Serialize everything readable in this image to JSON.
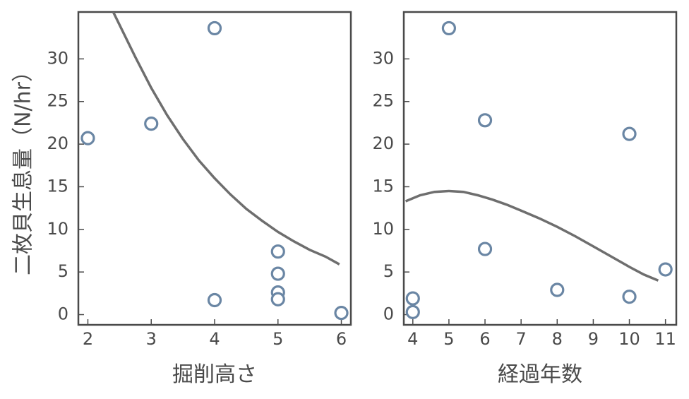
{
  "chart_data": {
    "ylabel": "二枚貝生息量（N/hr）",
    "panels": [
      {
        "type": "scatter",
        "xlabel": "掘削高さ",
        "xlim": [
          1.85,
          6.15
        ],
        "ylim": [
          -1.2,
          35.5
        ],
        "xticks": [
          2,
          3,
          4,
          5,
          6
        ],
        "yticks": [
          0,
          5,
          10,
          15,
          20,
          25,
          30
        ],
        "points": [
          {
            "x": 2,
            "y": 20.7
          },
          {
            "x": 3,
            "y": 22.4
          },
          {
            "x": 4,
            "y": 33.6
          },
          {
            "x": 4,
            "y": 1.7
          },
          {
            "x": 5,
            "y": 7.4
          },
          {
            "x": 5,
            "y": 4.8
          },
          {
            "x": 5,
            "y": 2.6
          },
          {
            "x": 5,
            "y": 1.8
          },
          {
            "x": 6,
            "y": 0.2
          }
        ],
        "fit_curve": {
          "type": "line",
          "x": [
            2.4,
            2.75,
            3.0,
            3.25,
            3.5,
            3.75,
            4.0,
            4.25,
            4.5,
            4.75,
            5.0,
            5.25,
            5.5,
            5.75,
            5.97
          ],
          "y": [
            35.5,
            30.2,
            26.6,
            23.4,
            20.6,
            18.1,
            16.0,
            14.1,
            12.4,
            11.0,
            9.7,
            8.6,
            7.6,
            6.8,
            5.9
          ]
        }
      },
      {
        "type": "scatter",
        "xlabel": "経過年数",
        "xlim": [
          3.75,
          11.3
        ],
        "ylim": [
          -1.2,
          35.5
        ],
        "xticks": [
          4,
          5,
          6,
          7,
          8,
          9,
          10,
          11
        ],
        "yticks": [
          0,
          5,
          10,
          15,
          20,
          25,
          30
        ],
        "points": [
          {
            "x": 4,
            "y": 1.9
          },
          {
            "x": 4,
            "y": 0.3
          },
          {
            "x": 5,
            "y": 33.6
          },
          {
            "x": 6,
            "y": 22.8
          },
          {
            "x": 6,
            "y": 7.7
          },
          {
            "x": 8,
            "y": 2.9
          },
          {
            "x": 10,
            "y": 21.2
          },
          {
            "x": 10,
            "y": 2.1
          },
          {
            "x": 11,
            "y": 5.3
          }
        ],
        "fit_curve": {
          "type": "line",
          "x": [
            3.8,
            4.2,
            4.6,
            5.0,
            5.4,
            5.8,
            6.2,
            6.6,
            7.0,
            7.5,
            8.0,
            8.5,
            9.0,
            9.5,
            10.0,
            10.4,
            10.8
          ],
          "y": [
            13.3,
            14.0,
            14.4,
            14.5,
            14.4,
            14.0,
            13.5,
            12.9,
            12.2,
            11.3,
            10.3,
            9.2,
            8.0,
            6.8,
            5.6,
            4.7,
            4.0
          ]
        }
      }
    ]
  },
  "colors": {
    "marker_stroke": "#6a86a4",
    "curve": "#6e6e6e",
    "axis": "#4a4a4a",
    "text": "#4a4a4a"
  }
}
